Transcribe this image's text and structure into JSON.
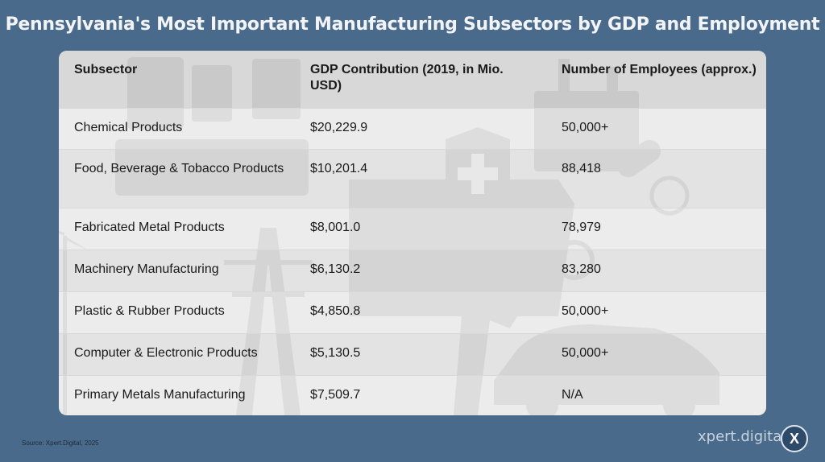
{
  "title": "Pennsylvania's Most Important Manufacturing Subsectors by GDP and Employment",
  "table": {
    "headers": [
      "Subsector",
      "GDP Contribution (2019, in Mio. USD)",
      "Number of Employees (approx.)"
    ],
    "rows": [
      [
        "Chemical Products",
        "$20,229.9",
        "50,000+"
      ],
      [
        "Food, Beverage & Tobacco Products",
        "$10,201.4",
        "88,418"
      ],
      [
        "Fabricated Metal Products",
        "$8,001.0",
        "78,979"
      ],
      [
        "Machinery Manufacturing",
        "$6,130.2",
        "83,280"
      ],
      [
        "Plastic & Rubber Products",
        "$4,850.8",
        "50,000+"
      ],
      [
        "Computer & Electronic Products",
        "$5,130.5",
        "50,000+"
      ],
      [
        "Primary Metals Manufacturing",
        "$7,509.7",
        "N/A"
      ]
    ]
  },
  "source": "Source: Xpert.Digital, 2025",
  "brand": {
    "name": "xpert.digital",
    "badge": "X"
  },
  "colors": {
    "background": "#4a6a8b",
    "card": "#ececec",
    "header_row": "#c8c8c8"
  }
}
